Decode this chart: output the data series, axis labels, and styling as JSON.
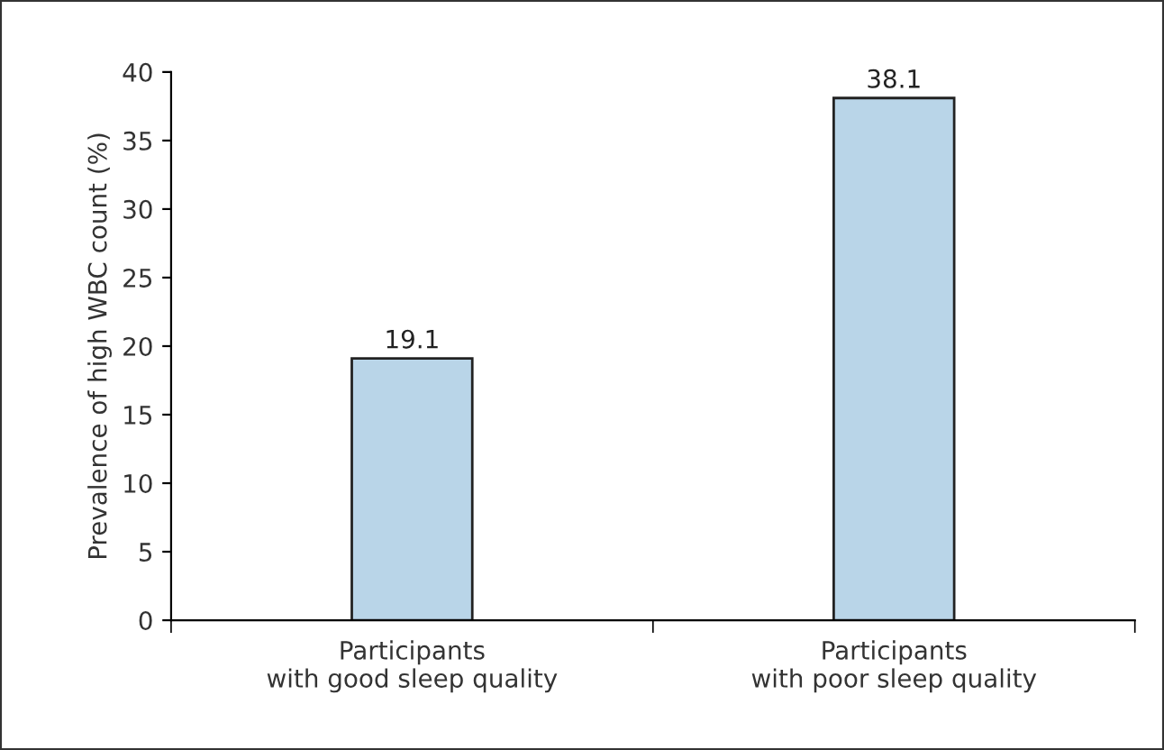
{
  "chart_data": {
    "type": "bar",
    "ylabel": "Prevalence of high WBC count (%)",
    "categories": [
      "Participants\nwith good sleep quality",
      "Participants\nwith poor sleep quality"
    ],
    "values": [
      19.1,
      38.1
    ],
    "color": "#b9d5e8",
    "ylim": [
      0,
      40
    ],
    "yticks": [
      0,
      5,
      10,
      15,
      20,
      25,
      30,
      35,
      40
    ],
    "grid": false,
    "data_labels": true
  }
}
